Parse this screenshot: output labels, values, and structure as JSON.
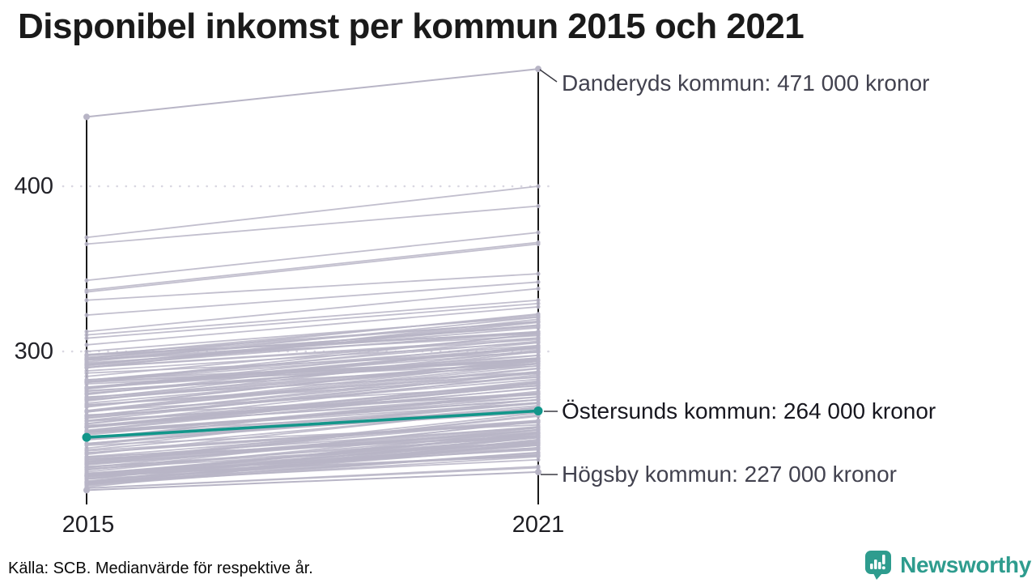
{
  "title": "Disponibel inkomst per kommun 2015 och 2021",
  "axis": {
    "y_ticks": [
      "400",
      "300"
    ],
    "x_ticks": [
      "2015",
      "2021"
    ]
  },
  "annotations": {
    "danderyd": "Danderyds kommun: 471 000 kronor",
    "ostersund": "Östersunds kommun: 264 000 kronor",
    "hogsby": "Högsby kommun: 227 000 kronor"
  },
  "footer": {
    "source": "Källa: SCB. Medianvärde för respektive år."
  },
  "logo": {
    "text": "Newsworthy",
    "color": "#2e9c8e"
  },
  "colors": {
    "highlight": "#12968a",
    "background_line": "#b8b5c6",
    "axis": "#000000",
    "grid": "#d9d7e1",
    "leader": "#3a3a42"
  },
  "chart_data": {
    "type": "line",
    "subtype": "slopegraph",
    "title": "Disponibel inkomst per kommun 2015 och 2021",
    "x": [
      "2015",
      "2021"
    ],
    "y_unit_label_implied": "tusental kronor",
    "ylim": [
      205,
      480
    ],
    "yticks": [
      300,
      400
    ],
    "grid": "dotted horizontal lines at yticks",
    "legend": "none",
    "series": [
      {
        "name": "Danderyds kommun",
        "values": [
          442,
          471
        ],
        "role": "labeled-max",
        "label": "Danderyds kommun: 471 000 kronor"
      },
      {
        "name": "Östersunds kommun",
        "values": [
          248,
          264
        ],
        "role": "highlighted",
        "label": "Östersunds kommun: 264 000 kronor"
      },
      {
        "name": "Högsby kommun",
        "values": [
          216,
          227
        ],
        "role": "labeled-min",
        "label": "Högsby kommun: 227 000 kronor"
      }
    ],
    "background_series": [
      [
        369,
        400
      ],
      [
        365,
        388
      ],
      [
        343,
        372
      ],
      [
        337,
        366
      ],
      [
        336,
        365
      ],
      [
        331,
        347
      ],
      [
        322,
        342
      ],
      [
        312,
        338
      ],
      [
        310,
        331
      ],
      [
        308,
        329
      ],
      [
        304,
        327
      ],
      [
        300,
        321
      ],
      [
        298,
        318
      ],
      [
        296,
        315
      ],
      [
        295,
        312
      ],
      [
        293,
        311
      ]
    ],
    "background_band": {
      "description": "unlabeled municipality lines, values estimated from pixel band",
      "count": 155,
      "v2015_min": 217,
      "v2015_span": 83,
      "skew": 1.35,
      "gain_min": 12,
      "gain_max": 30,
      "seed": 7
    }
  }
}
